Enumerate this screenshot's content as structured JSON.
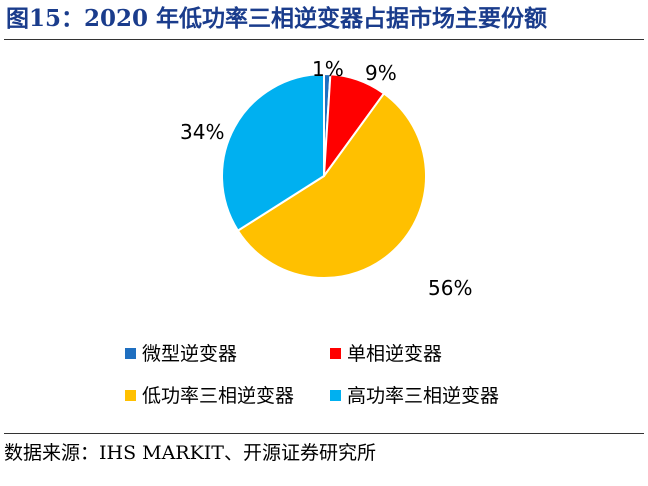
{
  "title": "图15：2020 年低功率三相逆变器占据市场主要份额",
  "source": "数据来源：IHS MARKIT、开源证券研究所",
  "chart_data": {
    "type": "pie",
    "categories": [
      "微型逆变器",
      "单相逆变器",
      "低功率三相逆变器",
      "高功率三相逆变器"
    ],
    "values": [
      1,
      9,
      56,
      34
    ],
    "labels": [
      "1%",
      "9%",
      "56%",
      "34%"
    ],
    "colors": [
      "#1f6fc0",
      "#ff0000",
      "#ffc000",
      "#00b0f0"
    ],
    "legend_position": "bottom"
  }
}
